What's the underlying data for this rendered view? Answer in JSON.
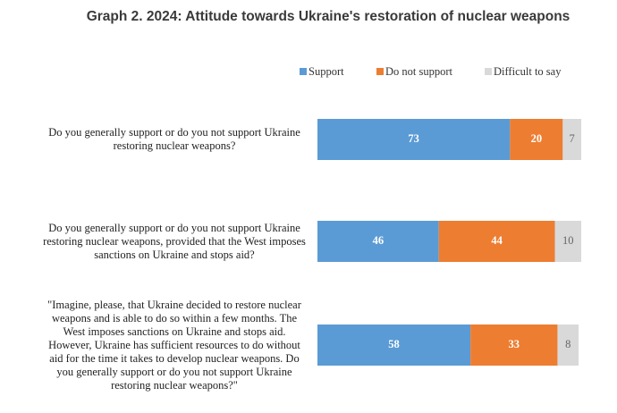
{
  "chart_data": {
    "type": "stacked-bar-horizontal",
    "title": "Graph 2. 2024: Attitude towards Ukraine's restoration of nuclear weapons",
    "categories": [
      "Do you generally support or do you not support Ukraine restoring nuclear weapons?",
      "Do you generally support or do you not support Ukraine restoring nuclear weapons, provided that the West imposes sanctions on Ukraine and stops aid?",
      "\"Imagine, please, that Ukraine decided to restore nuclear weapons and is able to do so within a few months. The West imposes sanctions on Ukraine and stops aid. However, Ukraine has sufficient resources to do without aid for the time it takes to develop nuclear weapons. Do you generally support or do you not support Ukraine restoring nuclear weapons?\""
    ],
    "series": [
      {
        "name": "Support",
        "color": "#5b9bd5",
        "values": [
          73,
          46,
          58
        ]
      },
      {
        "name": "Do not support",
        "color": "#ed7d31",
        "values": [
          20,
          44,
          33
        ]
      },
      {
        "name": "Difficult to say",
        "color": "#d9d9d9",
        "values": [
          7,
          10,
          8
        ]
      }
    ],
    "xlim": [
      0,
      100
    ],
    "legend": "top"
  }
}
